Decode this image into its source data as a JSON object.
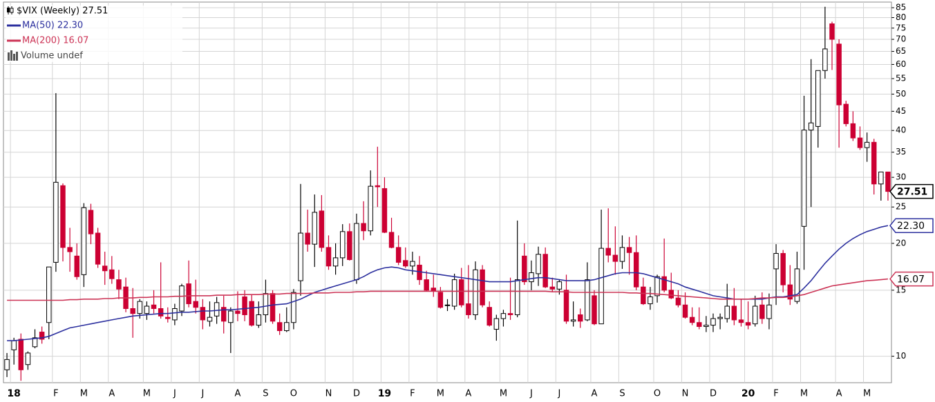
{
  "chart_data": {
    "type": "candlestick",
    "title": "$VIX (Weekly) 27.51",
    "volume_legend": "Volume undef",
    "log_scale": true,
    "grid": true,
    "ylim": [
      8.5,
      88
    ],
    "yticks": [
      10,
      15,
      20,
      25,
      30,
      35,
      40,
      45,
      50,
      55,
      60,
      65,
      70,
      75,
      80,
      85
    ],
    "up_color": "#ffffff",
    "down_color": "#cc0033",
    "outline_color": "#000000",
    "categories": [
      null,
      "18",
      null,
      null,
      null,
      null,
      null,
      "F",
      null,
      null,
      null,
      "M",
      null,
      null,
      null,
      "A",
      null,
      null,
      null,
      null,
      "M",
      null,
      null,
      null,
      "J",
      null,
      null,
      null,
      "J",
      null,
      null,
      null,
      null,
      "A",
      null,
      null,
      null,
      "S",
      null,
      null,
      null,
      "O",
      null,
      null,
      null,
      null,
      "N",
      null,
      null,
      null,
      "D",
      null,
      null,
      null,
      "19",
      null,
      null,
      null,
      "F",
      null,
      null,
      null,
      "M",
      null,
      null,
      null,
      "A",
      null,
      null,
      null,
      null,
      "M",
      null,
      null,
      null,
      "J",
      null,
      null,
      null,
      "J",
      null,
      null,
      null,
      null,
      "A",
      null,
      null,
      null,
      "S",
      null,
      null,
      null,
      null,
      "O",
      null,
      null,
      null,
      "N",
      null,
      null,
      null,
      "D",
      null,
      null,
      null,
      null,
      "20",
      null,
      null,
      null,
      "F",
      null,
      null,
      null,
      "M",
      null,
      null,
      null,
      null,
      "A",
      null,
      null,
      null,
      "M",
      null,
      null,
      null
    ],
    "ohlc": [
      [
        9.2,
        10.2,
        8.8,
        9.8
      ],
      [
        10.4,
        11.2,
        9.5,
        11.0
      ],
      [
        11.1,
        11.5,
        8.6,
        9.2
      ],
      [
        9.5,
        10.3,
        9.2,
        10.2
      ],
      [
        10.6,
        11.8,
        10.5,
        11.2
      ],
      [
        11.6,
        12.0,
        10.8,
        11.1
      ],
      [
        12.3,
        17.3,
        11.1,
        17.3
      ],
      [
        17.8,
        50.3,
        16.8,
        29.1
      ],
      [
        28.5,
        28.9,
        17.9,
        19.5
      ],
      [
        19.5,
        22.0,
        16.8,
        19.0
      ],
      [
        18.5,
        20.0,
        16.0,
        16.3
      ],
      [
        16.5,
        25.6,
        15.3,
        24.9
      ],
      [
        24.5,
        25.5,
        19.9,
        21.2
      ],
      [
        21.3,
        22.0,
        17.2,
        17.6
      ],
      [
        17.4,
        19.0,
        15.5,
        16.9
      ],
      [
        17.0,
        18.5,
        15.6,
        16.1
      ],
      [
        16.0,
        17.0,
        14.2,
        15.1
      ],
      [
        15.3,
        16.2,
        13.1,
        13.4
      ],
      [
        13.4,
        15.2,
        11.2,
        13.0
      ],
      [
        13.0,
        14.2,
        12.6,
        14.0
      ],
      [
        13.0,
        14.0,
        12.5,
        13.6
      ],
      [
        13.7,
        15.0,
        13.0,
        13.4
      ],
      [
        13.4,
        17.8,
        12.6,
        12.8
      ],
      [
        12.7,
        13.5,
        12.3,
        12.6
      ],
      [
        12.5,
        13.8,
        12.1,
        13.4
      ],
      [
        13.2,
        15.6,
        12.8,
        15.4
      ],
      [
        15.6,
        18.0,
        13.5,
        13.8
      ],
      [
        14.0,
        16.0,
        13.0,
        13.5
      ],
      [
        13.5,
        14.2,
        11.8,
        12.5
      ],
      [
        12.4,
        14.0,
        12.0,
        12.7
      ],
      [
        12.8,
        14.4,
        12.2,
        13.9
      ],
      [
        13.5,
        14.5,
        11.5,
        12.4
      ],
      [
        12.3,
        13.5,
        10.2,
        13.2
      ],
      [
        13.2,
        14.9,
        12.4,
        13.0
      ],
      [
        14.4,
        15.0,
        12.4,
        12.9
      ],
      [
        14.0,
        14.6,
        12.0,
        12.1
      ],
      [
        12.1,
        14.0,
        11.9,
        12.9
      ],
      [
        12.9,
        16.0,
        12.3,
        14.7
      ],
      [
        14.7,
        15.0,
        12.2,
        12.4
      ],
      [
        12.3,
        13.0,
        11.4,
        11.7
      ],
      [
        11.7,
        13.5,
        11.6,
        12.3
      ],
      [
        12.3,
        15.1,
        11.8,
        14.8
      ],
      [
        15.9,
        28.8,
        14.5,
        21.3
      ],
      [
        21.3,
        24.6,
        19.0,
        19.9
      ],
      [
        19.9,
        27.0,
        17.3,
        24.2
      ],
      [
        24.4,
        26.9,
        19.0,
        19.5
      ],
      [
        19.5,
        21.0,
        17.0,
        17.4
      ],
      [
        17.4,
        20.0,
        16.5,
        18.3
      ],
      [
        18.3,
        22.5,
        17.4,
        21.5
      ],
      [
        21.5,
        22.6,
        18.0,
        18.1
      ],
      [
        16.0,
        24.0,
        15.6,
        22.6
      ],
      [
        22.6,
        25.9,
        20.4,
        21.6
      ],
      [
        21.6,
        31.3,
        21.0,
        28.4
      ],
      [
        28.5,
        36.2,
        25.0,
        28.3
      ],
      [
        28.0,
        30.0,
        21.3,
        21.4
      ],
      [
        21.4,
        23.4,
        19.4,
        19.5
      ],
      [
        19.5,
        21.0,
        17.5,
        17.8
      ],
      [
        18.0,
        19.5,
        17.2,
        17.4
      ],
      [
        17.4,
        19.0,
        16.5,
        17.9
      ],
      [
        17.5,
        18.5,
        15.5,
        16.0
      ],
      [
        16.0,
        16.9,
        14.9,
        15.0
      ],
      [
        15.2,
        16.5,
        14.4,
        14.9
      ],
      [
        14.8,
        15.3,
        13.4,
        13.5
      ],
      [
        13.7,
        14.2,
        13.2,
        13.7
      ],
      [
        13.6,
        16.6,
        13.3,
        16.0
      ],
      [
        16.0,
        17.2,
        13.5,
        13.7
      ],
      [
        13.8,
        17.5,
        12.6,
        12.9
      ],
      [
        12.9,
        17.9,
        12.5,
        17.0
      ],
      [
        17.0,
        17.5,
        13.5,
        13.7
      ],
      [
        13.5,
        14.0,
        12.0,
        12.1
      ],
      [
        11.8,
        12.9,
        11.0,
        12.6
      ],
      [
        12.6,
        13.3,
        12.0,
        13.0
      ],
      [
        13.0,
        16.2,
        12.5,
        12.9
      ],
      [
        12.9,
        23.0,
        12.7,
        16.0
      ],
      [
        18.5,
        20.0,
        15.5,
        15.8
      ],
      [
        15.8,
        18.0,
        15.0,
        16.7
      ],
      [
        16.6,
        19.6,
        15.4,
        18.7
      ],
      [
        18.7,
        19.5,
        15.2,
        15.3
      ],
      [
        15.3,
        16.2,
        14.8,
        15.1
      ],
      [
        15.1,
        16.0,
        14.6,
        15.8
      ],
      [
        15.0,
        16.5,
        12.2,
        12.4
      ],
      [
        12.4,
        14.0,
        12.0,
        12.5
      ],
      [
        12.9,
        13.4,
        11.9,
        12.4
      ],
      [
        12.5,
        17.8,
        12.4,
        16.0
      ],
      [
        14.5,
        15.0,
        12.1,
        12.2
      ],
      [
        12.2,
        24.6,
        12.2,
        19.4
      ],
      [
        19.4,
        24.8,
        17.8,
        18.6
      ],
      [
        18.6,
        22.2,
        16.5,
        17.9
      ],
      [
        17.9,
        21.0,
        17.1,
        19.5
      ],
      [
        19.5,
        20.8,
        16.5,
        18.9
      ],
      [
        18.9,
        21.0,
        15.0,
        15.3
      ],
      [
        15.3,
        16.2,
        13.7,
        13.8
      ],
      [
        13.8,
        15.3,
        13.3,
        14.4
      ],
      [
        14.5,
        16.5,
        13.9,
        16.3
      ],
      [
        16.3,
        20.6,
        14.8,
        15.0
      ],
      [
        15.0,
        16.7,
        14.2,
        14.3
      ],
      [
        14.3,
        15.0,
        13.5,
        13.7
      ],
      [
        13.7,
        14.8,
        12.6,
        12.7
      ],
      [
        12.7,
        13.5,
        12.1,
        12.3
      ],
      [
        12.3,
        13.5,
        11.8,
        12.0
      ],
      [
        12.0,
        12.8,
        11.6,
        12.1
      ],
      [
        12.1,
        13.0,
        11.6,
        12.6
      ],
      [
        12.6,
        13.0,
        11.8,
        12.7
      ],
      [
        12.6,
        15.6,
        12.3,
        13.6
      ],
      [
        13.6,
        15.2,
        12.1,
        12.5
      ],
      [
        12.5,
        14.2,
        12.0,
        12.3
      ],
      [
        12.3,
        14.0,
        11.8,
        12.1
      ],
      [
        12.2,
        14.5,
        12.0,
        13.6
      ],
      [
        13.7,
        14.8,
        12.2,
        12.6
      ],
      [
        12.6,
        14.7,
        11.8,
        13.7
      ],
      [
        17.1,
        19.9,
        13.7,
        18.8
      ],
      [
        18.8,
        19.2,
        14.8,
        15.5
      ],
      [
        15.5,
        17.5,
        13.7,
        14.2
      ],
      [
        14.0,
        19.0,
        13.8,
        17.1
      ],
      [
        22.2,
        49.5,
        17.0,
        40.1
      ],
      [
        40.1,
        62.0,
        25.0,
        41.9
      ],
      [
        41.0,
        57.8,
        36.0,
        57.8
      ],
      [
        57.8,
        85.5,
        55.0,
        66.0
      ],
      [
        77.0,
        78.0,
        58.0,
        70.0
      ],
      [
        68.0,
        70.0,
        36.0,
        46.8
      ],
      [
        47.0,
        48.0,
        41.0,
        41.7
      ],
      [
        41.7,
        45.0,
        37.5,
        38.2
      ],
      [
        38.2,
        41.0,
        35.5,
        36.0
      ],
      [
        36.0,
        39.5,
        33.0,
        37.2
      ],
      [
        37.2,
        38.0,
        27.0,
        28.8
      ],
      [
        28.8,
        31.0,
        26.0,
        31.0
      ],
      [
        31.0,
        31.0,
        26.0,
        27.51
      ]
    ],
    "series": [
      {
        "name": "MA(50) 22.30",
        "color": "#2b2f9e",
        "values": [
          11.0,
          11.0,
          11.05,
          11.1,
          11.15,
          11.2,
          11.3,
          11.5,
          11.7,
          11.9,
          12.0,
          12.1,
          12.2,
          12.3,
          12.4,
          12.5,
          12.6,
          12.7,
          12.8,
          12.85,
          12.9,
          12.95,
          13.0,
          13.0,
          13.05,
          13.1,
          13.1,
          13.15,
          13.2,
          13.2,
          13.25,
          13.3,
          13.3,
          13.35,
          13.4,
          13.45,
          13.5,
          13.6,
          13.7,
          13.75,
          13.8,
          14.0,
          14.2,
          14.5,
          14.8,
          15.0,
          15.2,
          15.4,
          15.6,
          15.8,
          16.0,
          16.3,
          16.7,
          17.0,
          17.2,
          17.3,
          17.2,
          17.0,
          16.9,
          16.8,
          16.7,
          16.6,
          16.5,
          16.4,
          16.3,
          16.2,
          16.1,
          16.0,
          15.9,
          15.8,
          15.8,
          15.8,
          15.8,
          15.9,
          16.0,
          16.1,
          16.2,
          16.2,
          16.1,
          16.0,
          15.9,
          15.9,
          15.9,
          15.9,
          16.0,
          16.2,
          16.4,
          16.6,
          16.7,
          16.7,
          16.7,
          16.6,
          16.4,
          16.2,
          16.0,
          15.8,
          15.6,
          15.3,
          15.1,
          14.9,
          14.7,
          14.5,
          14.4,
          14.3,
          14.2,
          14.2,
          14.2,
          14.2,
          14.2,
          14.3,
          14.4,
          14.4,
          14.5,
          14.6,
          15.2,
          15.9,
          16.8,
          17.7,
          18.5,
          19.3,
          20.0,
          20.6,
          21.1,
          21.5,
          21.8,
          22.1,
          22.3
        ]
      },
      {
        "name": "MA(200) 16.07",
        "color": "#cc3355",
        "values": [
          14.1,
          14.1,
          14.1,
          14.1,
          14.1,
          14.1,
          14.1,
          14.1,
          14.1,
          14.15,
          14.15,
          14.2,
          14.2,
          14.2,
          14.25,
          14.25,
          14.3,
          14.3,
          14.3,
          14.35,
          14.35,
          14.4,
          14.4,
          14.4,
          14.45,
          14.45,
          14.5,
          14.5,
          14.5,
          14.5,
          14.55,
          14.55,
          14.55,
          14.6,
          14.6,
          14.6,
          14.6,
          14.65,
          14.65,
          14.65,
          14.7,
          14.7,
          14.7,
          14.7,
          14.75,
          14.75,
          14.75,
          14.8,
          14.8,
          14.8,
          14.85,
          14.85,
          14.9,
          14.9,
          14.9,
          14.9,
          14.9,
          14.9,
          14.9,
          14.9,
          14.9,
          14.9,
          14.9,
          14.9,
          14.9,
          14.9,
          14.9,
          14.9,
          14.9,
          14.9,
          14.9,
          14.9,
          14.9,
          14.9,
          14.9,
          14.9,
          14.9,
          14.9,
          14.85,
          14.85,
          14.85,
          14.8,
          14.8,
          14.8,
          14.8,
          14.8,
          14.8,
          14.8,
          14.8,
          14.75,
          14.75,
          14.7,
          14.7,
          14.65,
          14.6,
          14.55,
          14.5,
          14.45,
          14.4,
          14.35,
          14.3,
          14.25,
          14.2,
          14.2,
          14.2,
          14.2,
          14.2,
          14.25,
          14.3,
          14.3,
          14.35,
          14.35,
          14.4,
          14.5,
          14.6,
          14.8,
          15.0,
          15.2,
          15.4,
          15.5,
          15.6,
          15.7,
          15.8,
          15.9,
          15.95,
          16.0,
          16.07
        ]
      }
    ],
    "price_flags": [
      {
        "value": 27.51,
        "label": "27.51",
        "color": "#000000"
      },
      {
        "value": 22.3,
        "label": "22.30",
        "color": "#2b2f9e"
      },
      {
        "value": 16.07,
        "label": "16.07",
        "color": "#cc3355"
      }
    ]
  }
}
